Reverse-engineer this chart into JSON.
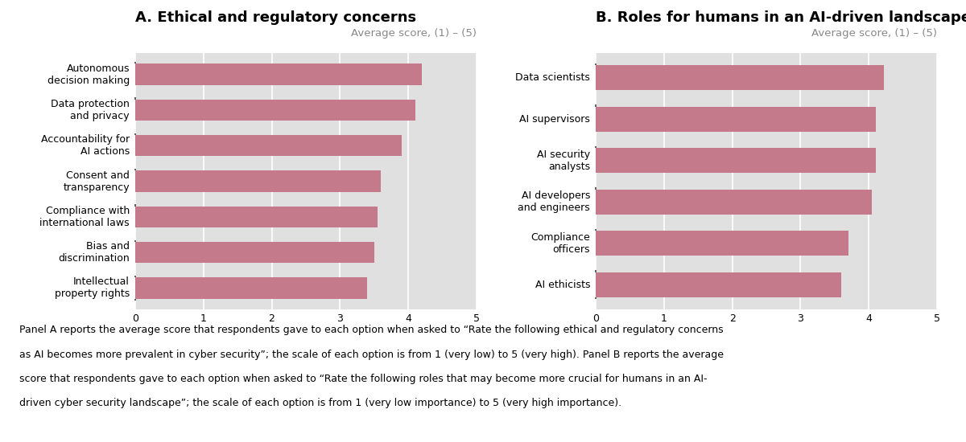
{
  "panel_a": {
    "title": "A. Ethical and regulatory concerns",
    "subtitle": "Average score, (1) – (5)",
    "categories": [
      "Autonomous\ndecision making",
      "Data protection\nand privacy",
      "Accountability for\nAI actions",
      "Consent and\ntransparency",
      "Compliance with\ninternational laws",
      "Bias and\ndiscrimination",
      "Intellectual\nproperty rights"
    ],
    "values": [
      4.2,
      4.1,
      3.9,
      3.6,
      3.55,
      3.5,
      3.4
    ]
  },
  "panel_b": {
    "title": "B. Roles for humans in an AI-driven landscape",
    "subtitle": "Average score, (1) – (5)",
    "categories": [
      "Data scientists",
      "AI supervisors",
      "AI security\nanalysts",
      "AI developers\nand engineers",
      "Compliance\nofficers",
      "AI ethicists"
    ],
    "values": [
      4.22,
      4.1,
      4.1,
      4.05,
      3.7,
      3.6
    ]
  },
  "bar_color": "#c47a8a",
  "bg_color": "#e0e0e0",
  "fig_bg_color": "#ffffff",
  "xlim": [
    0,
    5
  ],
  "xticks": [
    0,
    1,
    2,
    3,
    4,
    5
  ],
  "caption_lines": [
    "Panel A reports the average score that respondents gave to each option when asked to “Rate the following ethical and regulatory concerns",
    "as AI becomes more prevalent in cyber security”; the scale of each option is from 1 (very low) to 5 (very high). Panel B reports the average",
    "score that respondents gave to each option when asked to “Rate the following roles that may become more crucial for humans in an AI-",
    "driven cyber security landscape”; the scale of each option is from 1 (very low importance) to 5 (very high importance)."
  ],
  "title_fontsize": 13,
  "subtitle_fontsize": 9.5,
  "label_fontsize": 9,
  "tick_fontsize": 9,
  "caption_fontsize": 9
}
